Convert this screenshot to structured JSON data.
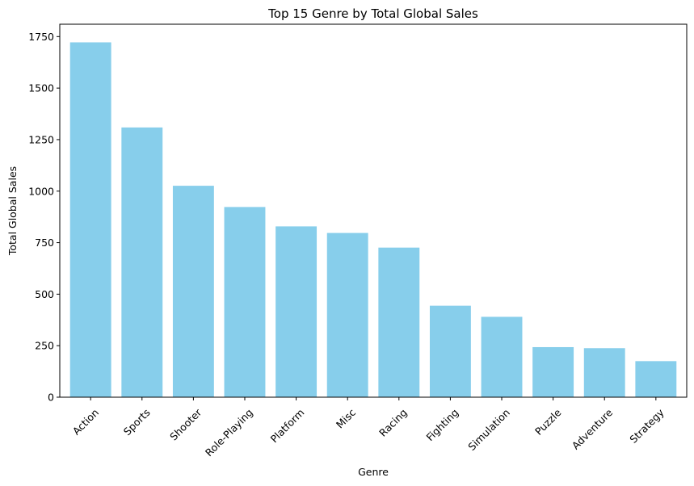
{
  "chart_data": {
    "type": "bar",
    "title": "Top 15 Genre by Total Global Sales",
    "xlabel": "Genre",
    "ylabel": "Total Global Sales",
    "categories": [
      "Action",
      "Sports",
      "Shooter",
      "Role-Playing",
      "Platform",
      "Misc",
      "Racing",
      "Fighting",
      "Simulation",
      "Puzzle",
      "Adventure",
      "Strategy"
    ],
    "values": [
      1722,
      1309,
      1026,
      923,
      829,
      797,
      726,
      444,
      390,
      243,
      238,
      175
    ],
    "ylim": [
      0,
      1810
    ],
    "yticks": [
      0,
      250,
      500,
      750,
      1000,
      1250,
      1500,
      1750
    ],
    "bar_color": "#87CEEB",
    "grid": false,
    "legend": "none"
  }
}
